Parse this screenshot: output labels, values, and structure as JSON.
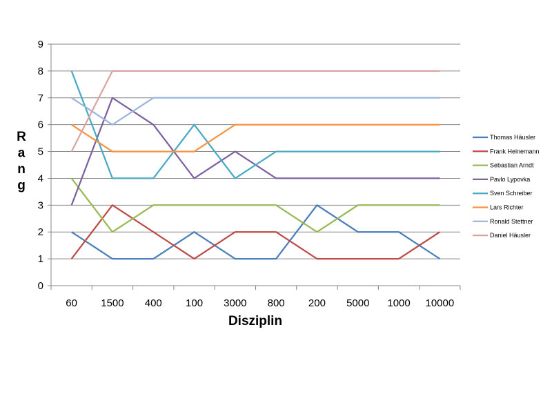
{
  "chart_data": {
    "type": "line",
    "title": "",
    "xlabel": "Disziplin",
    "ylabel": "Rang",
    "categories": [
      "60",
      "1500",
      "400",
      "100",
      "3000",
      "800",
      "200",
      "5000",
      "1000",
      "10000"
    ],
    "ylim": [
      0,
      9
    ],
    "yticks": [
      "0",
      "1",
      "2",
      "3",
      "4",
      "5",
      "6",
      "7",
      "8",
      "9"
    ],
    "grid": "horizontal",
    "legend_position": "right",
    "series": [
      {
        "name": "Thomas Häusler",
        "color": "#4a7ebb",
        "values": [
          2,
          1,
          1,
          2,
          1,
          1,
          3,
          2,
          2,
          1
        ]
      },
      {
        "name": "Frank Heinemann",
        "color": "#be4b48",
        "values": [
          1,
          3,
          2,
          1,
          2,
          2,
          1,
          1,
          1,
          2
        ]
      },
      {
        "name": "Sebastian Arndt",
        "color": "#98b954",
        "values": [
          4,
          2,
          3,
          3,
          3,
          3,
          2,
          3,
          3,
          3
        ]
      },
      {
        "name": "Pavlo Lypovka",
        "color": "#7d60a0",
        "values": [
          3,
          7,
          6,
          4,
          5,
          4,
          4,
          4,
          4,
          4
        ]
      },
      {
        "name": "Sven Schreiber",
        "color": "#46aac5",
        "values": [
          8,
          4,
          4,
          6,
          4,
          5,
          5,
          5,
          5,
          5
        ]
      },
      {
        "name": "Lars Richter",
        "color": "#f69240",
        "values": [
          6,
          5,
          5,
          5,
          6,
          6,
          6,
          6,
          6,
          6
        ]
      },
      {
        "name": "Ronald Stettner",
        "color": "#9bb6de",
        "values": [
          7,
          6,
          7,
          7,
          7,
          7,
          7,
          7,
          7,
          7
        ]
      },
      {
        "name": "Daniel Häusler",
        "color": "#dba3a2",
        "values": [
          5,
          8,
          8,
          8,
          8,
          8,
          8,
          8,
          8,
          8
        ]
      }
    ]
  }
}
